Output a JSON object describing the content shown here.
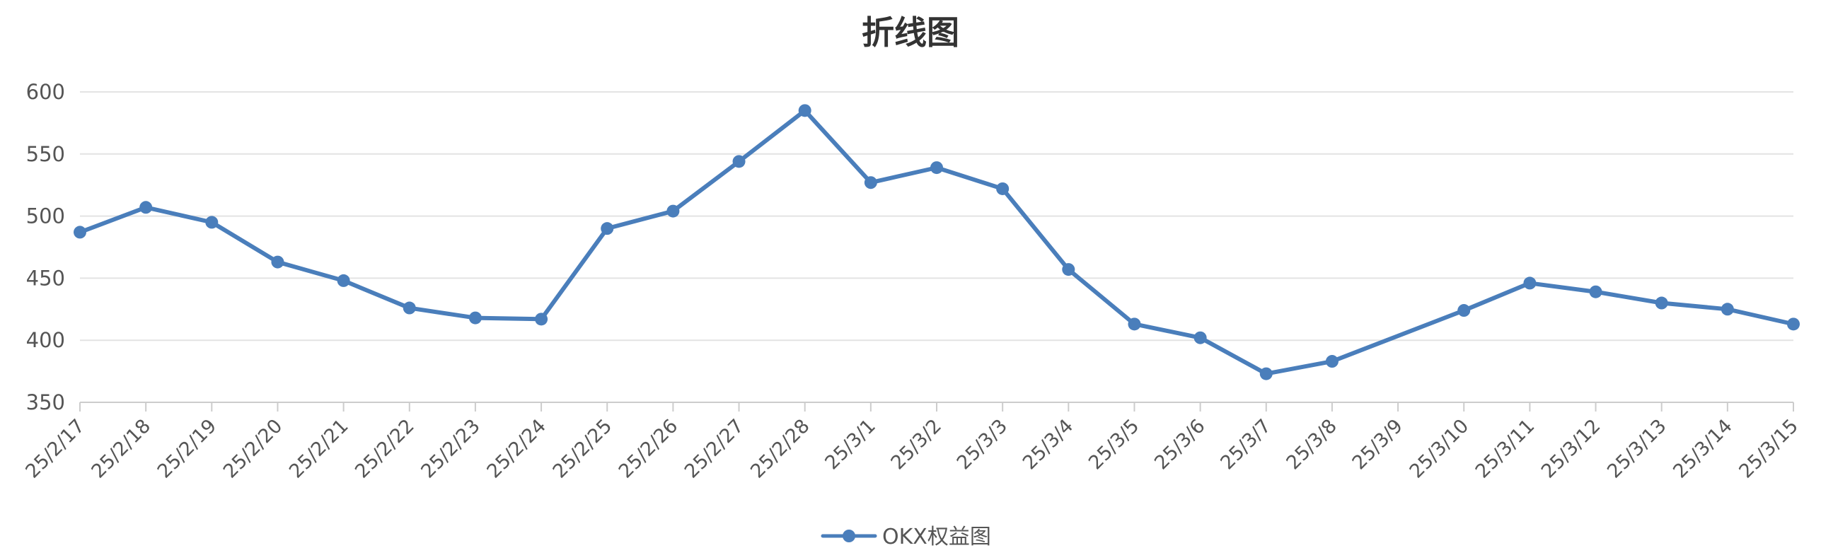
{
  "chart_data": {
    "type": "line",
    "title": "折线图",
    "xlabel": "",
    "ylabel": "",
    "ylim": [
      350,
      600
    ],
    "yticks": [
      350,
      400,
      450,
      500,
      550,
      600
    ],
    "grid": true,
    "legend_position": "bottom-center",
    "categories": [
      "25/2/17",
      "25/2/18",
      "25/2/19",
      "25/2/20",
      "25/2/21",
      "25/2/22",
      "25/2/23",
      "25/2/24",
      "25/2/25",
      "25/2/26",
      "25/2/27",
      "25/2/28",
      "25/3/1",
      "25/3/2",
      "25/3/3",
      "25/3/4",
      "25/3/5",
      "25/3/6",
      "25/3/7",
      "25/3/8",
      "25/3/9",
      "25/3/10",
      "25/3/11",
      "25/3/12",
      "25/3/13",
      "25/3/14",
      "25/3/15"
    ],
    "series": [
      {
        "name": "OKX权益图",
        "color": "#4a7ebb",
        "values": [
          487,
          507,
          495,
          463,
          448,
          426,
          418,
          417,
          490,
          504,
          544,
          585,
          527,
          539,
          522,
          457,
          413,
          402,
          373,
          383,
          null,
          424,
          446,
          439,
          430,
          425,
          413
        ]
      }
    ]
  }
}
